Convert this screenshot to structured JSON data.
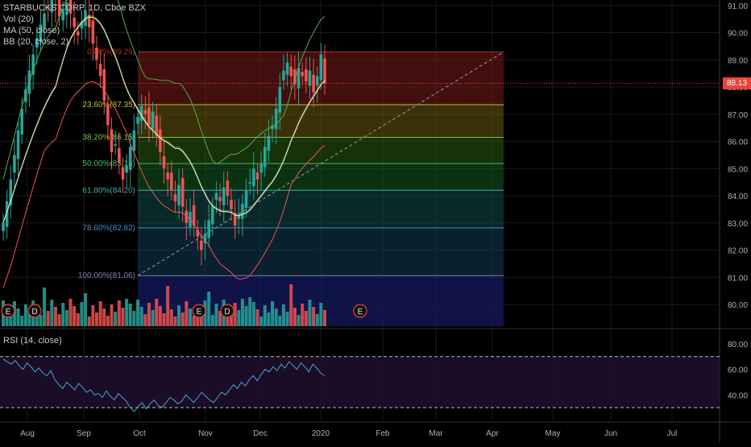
{
  "header": {
    "symbol_line": "STARBUCKS CORP, 1D, Cboe BZX",
    "indicators": [
      "Vol (20)",
      "MA (50, close)",
      "BB (20, close, 2)"
    ]
  },
  "rsi_label": "RSI (14, close)",
  "last_price": "88.13",
  "colors": {
    "up": "#26a69a",
    "down": "#ef5350",
    "ma": "#e8e8d0",
    "bb": "#4caf50",
    "rsi_line": "#4aa3d8",
    "fib_line": "#ff4a4a"
  },
  "chart_data": [
    {
      "type": "candlestick",
      "title": "STARBUCKS CORP, 1D, Cboe BZX",
      "x_ticks": [
        "Aug",
        "Sep",
        "Oct",
        "Nov",
        "Dec",
        "2020",
        "Feb",
        "Mar",
        "Apr",
        "May",
        "Jun",
        "Jul"
      ],
      "y_ticks": [
        "91.00",
        "90.00",
        "89.00",
        "88.00",
        "87.00",
        "86.00",
        "85.00",
        "84.00",
        "83.00",
        "82.00",
        "81.00",
        "80.00"
      ],
      "ylim": [
        79.2,
        91.2
      ],
      "last_price": 88.13,
      "closes": [
        83.0,
        83.8,
        84.6,
        85.5,
        86.4,
        87.2,
        87.9,
        88.6,
        89.2,
        89.8,
        90.3,
        90.7,
        90.9,
        91.2,
        91.0,
        90.6,
        90.8,
        91.1,
        90.7,
        90.2,
        89.9,
        90.4,
        90.8,
        90.2,
        89.6,
        89.0,
        88.4,
        87.5,
        86.6,
        85.6,
        85.9,
        85.2,
        84.6,
        85.1,
        85.8,
        86.4,
        86.9,
        87.3,
        87.0,
        86.6,
        87.1,
        86.2,
        85.6,
        85.0,
        84.6,
        84.2,
        83.8,
        84.4,
        83.6,
        83.0,
        83.4,
        82.9,
        82.5,
        82.0,
        82.6,
        83.1,
        83.6,
        84.1,
        83.8,
        84.3,
        84.0,
        83.5,
        82.9,
        83.3,
        83.7,
        84.2,
        84.5,
        85.0,
        84.6,
        85.2,
        85.8,
        86.2,
        86.6,
        87.2,
        88.0,
        88.6,
        88.9,
        88.4,
        88.1,
        88.7,
        88.4,
        88.2,
        88.6,
        87.8,
        88.4,
        89.2,
        88.13
      ],
      "volume_label": "Vol (20)",
      "moving_average": "MA (50, close)",
      "bollinger": "BB (20, close, 2)",
      "events": [
        {
          "label": "E",
          "x": "Jul 25"
        },
        {
          "label": "D",
          "x": "Aug 8"
        },
        {
          "label": "E",
          "x": "Oct 30"
        },
        {
          "label": "D",
          "x": "Nov 7"
        },
        {
          "label": "E",
          "x": "Jan 28"
        }
      ],
      "fibonacci": [
        {
          "label": "0.00%(89.29)",
          "ratio": 0.0,
          "value": 89.29
        },
        {
          "label": "23.60%(87.35)",
          "ratio": 0.236,
          "value": 87.35
        },
        {
          "label": "38.20%(86.15)",
          "ratio": 0.382,
          "value": 86.15
        },
        {
          "label": "50.00%(85.18)",
          "ratio": 0.5,
          "value": 85.18
        },
        {
          "label": "61.80%(84.20)",
          "ratio": 0.618,
          "value": 84.2
        },
        {
          "label": "78.60%(82.82)",
          "ratio": 0.786,
          "value": 82.82
        },
        {
          "label": "100.00%(81.06)",
          "ratio": 1.0,
          "value": 81.06
        }
      ]
    },
    {
      "type": "line",
      "title": "RSI (14, close)",
      "y_ticks": [
        "80.00",
        "60.00",
        "40.00"
      ],
      "ylim": [
        20,
        90
      ],
      "bands": [
        70,
        30
      ],
      "values": [
        68,
        66,
        64,
        67,
        63,
        60,
        65,
        62,
        58,
        61,
        57,
        55,
        59,
        52,
        48,
        45,
        50,
        47,
        44,
        49,
        46,
        42,
        44,
        40,
        41,
        38,
        43,
        39,
        36,
        41,
        38,
        35,
        30,
        27,
        31,
        34,
        29,
        33,
        36,
        32,
        30,
        34,
        38,
        36,
        33,
        35,
        40,
        37,
        34,
        38,
        42,
        39,
        36,
        34,
        38,
        42,
        40,
        44,
        48,
        45,
        50,
        47,
        52,
        55,
        51,
        56,
        60,
        58,
        62,
        59,
        64,
        61,
        66,
        63,
        60,
        65,
        62,
        58,
        64,
        61,
        57,
        55
      ]
    }
  ]
}
